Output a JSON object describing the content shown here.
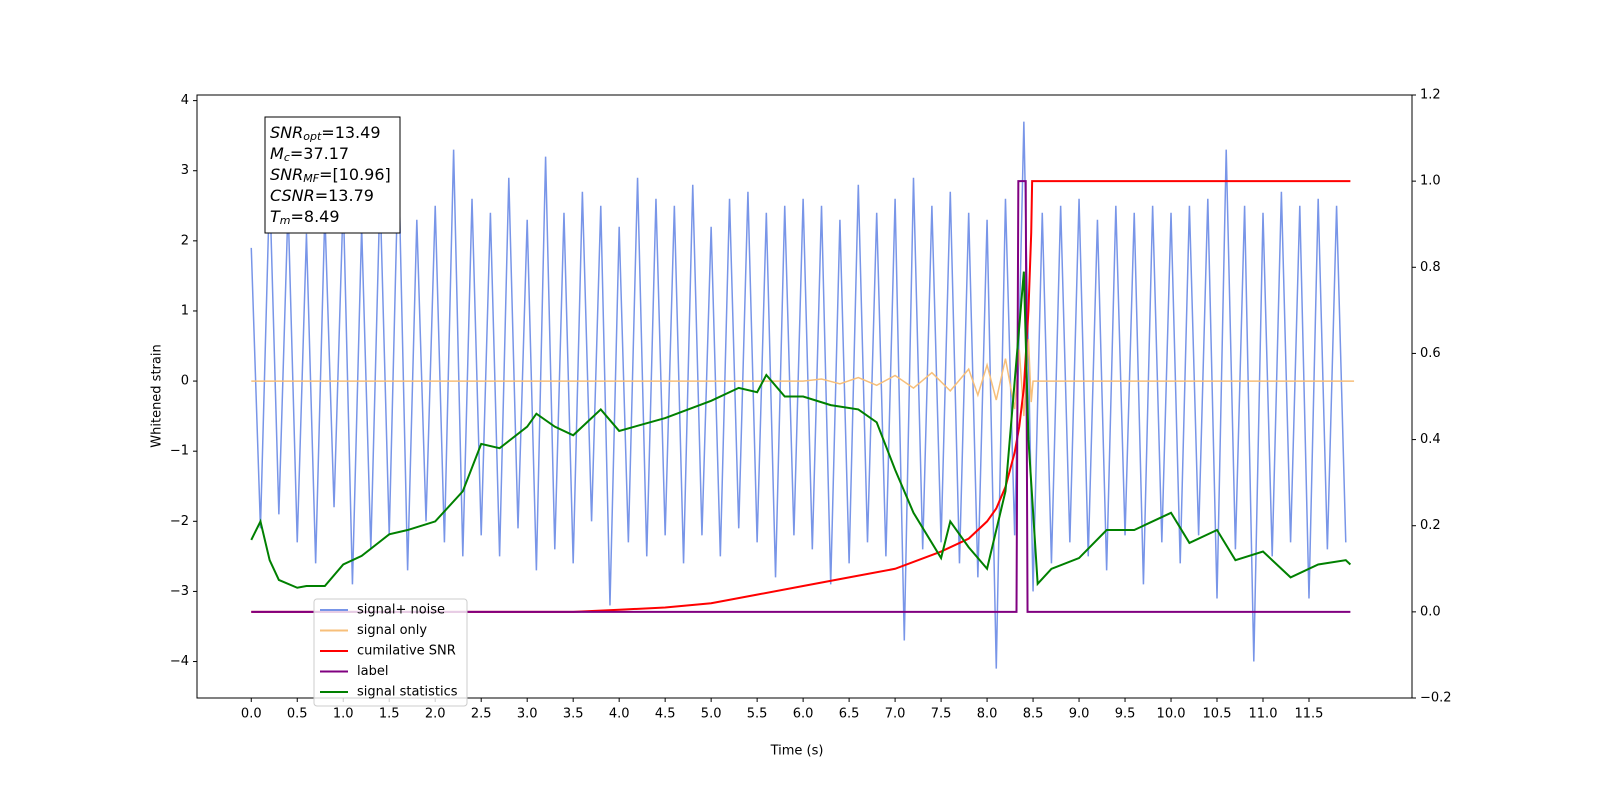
{
  "chart_data": {
    "type": "line",
    "xlabel": "Time (s)",
    "ylabel": "Whitened strain",
    "xlim": [
      -0.59,
      12.62
    ],
    "ylim": [
      -4.52,
      4.08
    ],
    "y2lim": [
      -0.2,
      1.2
    ],
    "xticks": [
      {
        "value": 0,
        "label": "0.0"
      },
      0.5,
      {
        "value": 1,
        "label": "1.0"
      },
      1.5,
      {
        "value": 2,
        "label": "2.0"
      },
      2.5,
      {
        "value": 3,
        "label": "3.0"
      },
      3.5,
      {
        "value": 4,
        "label": "4.0"
      },
      4.5,
      {
        "value": 5,
        "label": "5.0"
      },
      5.5,
      {
        "value": 6,
        "label": "6.0"
      },
      6.5,
      {
        "value": 7,
        "label": "7.0"
      },
      7.5,
      {
        "value": 8,
        "label": "8.0"
      },
      8.5,
      {
        "value": 9,
        "label": "9.0"
      },
      9.5,
      {
        "value": 10,
        "label": "10.0"
      },
      10.5,
      {
        "value": 11,
        "label": "11.0"
      },
      11.5
    ],
    "yticks": [
      {
        "value": -4,
        "label": "−4"
      },
      {
        "value": -3,
        "label": "−3"
      },
      {
        "value": -2,
        "label": "−2"
      },
      {
        "value": -1,
        "label": "−1"
      },
      0,
      1,
      2,
      3,
      4
    ],
    "y2ticks": [
      {
        "value": -0.2,
        "label": "−0.2"
      },
      {
        "value": 0,
        "label": "0.0"
      },
      0.2,
      0.4,
      0.6,
      0.8,
      {
        "value": 1,
        "label": "1.0"
      },
      1.2
    ],
    "legend": "lower left",
    "annotations": [
      {
        "base": "SNR",
        "sub": "opt",
        "rest": "=13.49"
      },
      {
        "base": "M",
        "sub": "c",
        "rest": "=37.17"
      },
      {
        "base": "SNR",
        "sub": "MF",
        "rest": "=[10.96]"
      },
      {
        "base": "CSNR",
        "rest": "=13.79"
      },
      {
        "base": "T",
        "sub": "m",
        "rest": "=8.49"
      }
    ],
    "series": [
      {
        "name": "signal+ noise",
        "color": "#7895e8",
        "axis": "y",
        "x": [
          0,
          0.1,
          0.2,
          0.3,
          0.4,
          0.5,
          0.6,
          0.7,
          0.8,
          0.9,
          1,
          1.1,
          1.2,
          1.3,
          1.4,
          1.5,
          1.6,
          1.7,
          1.8,
          1.9,
          2,
          2.1,
          2.2,
          2.3,
          2.4,
          2.5,
          2.6,
          2.7,
          2.8,
          2.9,
          3,
          3.1,
          3.2,
          3.3,
          3.4,
          3.5,
          3.6,
          3.7,
          3.8,
          3.9,
          4,
          4.1,
          4.2,
          4.3,
          4.4,
          4.5,
          4.6,
          4.7,
          4.8,
          4.9,
          5,
          5.1,
          5.2,
          5.3,
          5.4,
          5.5,
          5.6,
          5.7,
          5.8,
          5.9,
          6,
          6.1,
          6.2,
          6.3,
          6.4,
          6.5,
          6.6,
          6.7,
          6.8,
          6.9,
          7,
          7.1,
          7.2,
          7.3,
          7.4,
          7.5,
          7.6,
          7.7,
          7.8,
          7.9,
          8,
          8.1,
          8.2,
          8.3,
          8.4,
          8.5,
          8.6,
          8.7,
          8.8,
          8.9,
          9,
          9.1,
          9.2,
          9.3,
          9.4,
          9.5,
          9.6,
          9.7,
          9.8,
          9.9,
          10,
          10.1,
          10.2,
          10.3,
          10.4,
          10.5,
          10.6,
          10.7,
          10.8,
          10.9,
          11,
          11.1,
          11.2,
          11.3,
          11.4,
          11.5,
          11.6,
          11.7,
          11.8,
          11.9
        ],
        "values": [
          1.9,
          -2.1,
          2.8,
          -1.9,
          2.5,
          -2.3,
          2.1,
          -2.6,
          2.4,
          -1.8,
          2.6,
          -2.9,
          2.2,
          -2.4,
          2.7,
          -2.2,
          3.2,
          -2.7,
          2.3,
          -2.0,
          2.5,
          -2.3,
          3.3,
          -2.5,
          2.6,
          -2.2,
          2.4,
          -2.5,
          2.9,
          -2.1,
          2.3,
          -2.7,
          3.2,
          -2.4,
          2.4,
          -2.6,
          2.7,
          -2.0,
          2.5,
          -3.2,
          2.2,
          -2.3,
          2.9,
          -2.5,
          2.6,
          -2.2,
          2.5,
          -2.6,
          2.8,
          -2.2,
          2.2,
          -2.5,
          2.6,
          -2.1,
          2.7,
          -2.3,
          2.4,
          -2.8,
          2.5,
          -2.2,
          2.6,
          -2.4,
          2.5,
          -2.9,
          2.3,
          -2.6,
          2.8,
          -2.3,
          2.4,
          -2.5,
          2.6,
          -3.7,
          2.9,
          -2.4,
          2.5,
          -2.3,
          2.7,
          -2.6,
          2.4,
          -2.8,
          2.3,
          -4.1,
          2.6,
          -2.2,
          3.7,
          -3.0,
          2.4,
          -2.6,
          2.5,
          -2.3,
          2.6,
          -2.5,
          2.3,
          -2.7,
          2.5,
          -2.2,
          2.4,
          -2.9,
          2.5,
          -2.3,
          2.4,
          -2.6,
          2.5,
          -2.2,
          2.6,
          -3.1,
          3.3,
          -2.4,
          2.5,
          -4.0,
          2.4,
          -2.5,
          2.7,
          -2.3,
          2.5,
          -3.1,
          2.6,
          -2.4,
          2.5,
          -2.3
        ]
      },
      {
        "name": "signal only",
        "color": "#f7bf7a",
        "axis": "y",
        "x": [
          0,
          6.0,
          6.2,
          6.4,
          6.6,
          6.8,
          7.0,
          7.2,
          7.4,
          7.6,
          7.8,
          7.9,
          8.0,
          8.1,
          8.2,
          8.3,
          8.35,
          8.4,
          8.45,
          8.48,
          8.5,
          11.99
        ],
        "values": [
          0,
          0,
          0.03,
          -0.04,
          0.05,
          -0.06,
          0.08,
          -0.1,
          0.12,
          -0.14,
          0.17,
          -0.2,
          0.23,
          -0.27,
          0.32,
          -0.4,
          0.45,
          -0.5,
          0.6,
          -0.3,
          0,
          0
        ]
      },
      {
        "name": "cumilative SNR",
        "color": "#ff0000",
        "axis": "y2",
        "x": [
          0,
          3.5,
          4.0,
          4.5,
          5.0,
          5.5,
          6.0,
          6.5,
          7.0,
          7.5,
          7.8,
          8.0,
          8.1,
          8.2,
          8.3,
          8.35,
          8.4,
          8.45,
          8.48,
          8.49,
          11.95
        ],
        "values": [
          0,
          0,
          0.005,
          0.01,
          0.02,
          0.04,
          0.06,
          0.08,
          0.1,
          0.14,
          0.17,
          0.21,
          0.24,
          0.29,
          0.37,
          0.43,
          0.52,
          0.7,
          0.88,
          1.0,
          1.0
        ]
      },
      {
        "name": "label",
        "color": "#800080",
        "axis": "y2",
        "x": [
          0,
          8.32,
          8.34,
          8.42,
          8.44,
          11.95
        ],
        "values": [
          0,
          0,
          1,
          1,
          0,
          0
        ]
      },
      {
        "name": "signal statistics",
        "color": "#008000",
        "axis": "y2",
        "x": [
          0,
          0.1,
          0.2,
          0.3,
          0.5,
          0.6,
          0.8,
          1.0,
          1.2,
          1.5,
          1.7,
          2.0,
          2.3,
          2.5,
          2.7,
          3.0,
          3.1,
          3.3,
          3.5,
          3.8,
          4.0,
          4.5,
          5.0,
          5.3,
          5.5,
          5.6,
          5.8,
          6.0,
          6.3,
          6.6,
          6.8,
          7.0,
          7.2,
          7.5,
          7.6,
          7.8,
          8.0,
          8.2,
          8.4,
          8.45,
          8.55,
          8.7,
          9.0,
          9.3,
          9.6,
          10.0,
          10.2,
          10.5,
          10.7,
          11.0,
          11.3,
          11.6,
          11.9,
          11.95
        ],
        "values": [
          0.167,
          0.21,
          0.12,
          0.074,
          0.056,
          0.06,
          0.06,
          0.11,
          0.13,
          0.18,
          0.19,
          0.21,
          0.28,
          0.39,
          0.38,
          0.43,
          0.46,
          0.43,
          0.41,
          0.47,
          0.42,
          0.45,
          0.49,
          0.52,
          0.51,
          0.55,
          0.5,
          0.5,
          0.48,
          0.47,
          0.44,
          0.33,
          0.23,
          0.125,
          0.21,
          0.15,
          0.1,
          0.28,
          0.79,
          0.4,
          0.065,
          0.1,
          0.125,
          0.19,
          0.19,
          0.23,
          0.16,
          0.19,
          0.12,
          0.14,
          0.08,
          0.11,
          0.12,
          0.11
        ]
      }
    ]
  }
}
